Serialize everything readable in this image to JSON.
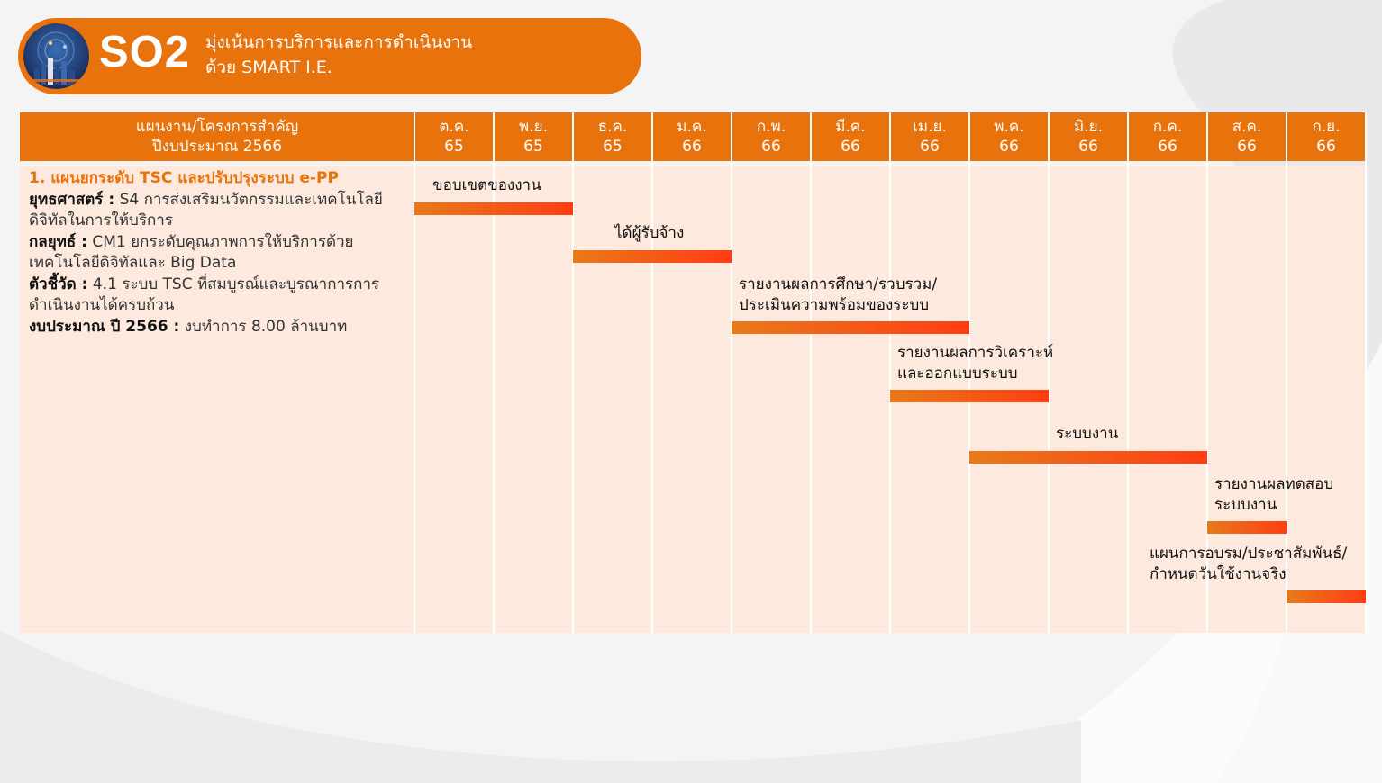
{
  "header": {
    "code": "SO2",
    "title_line1": "มุ่งเน้นการบริการและการดำเนินงาน",
    "title_line2": "ด้วย SMART I.E."
  },
  "table": {
    "plan_header_line1": "แผนงาน/โครงการสำคัญ",
    "plan_header_line2": "ปีงบประมาณ 2566",
    "months": [
      {
        "m": "ต.ค.",
        "y": "65"
      },
      {
        "m": "พ.ย.",
        "y": "65"
      },
      {
        "m": "ธ.ค.",
        "y": "65"
      },
      {
        "m": "ม.ค.",
        "y": "66"
      },
      {
        "m": "ก.พ.",
        "y": "66"
      },
      {
        "m": "มี.ค.",
        "y": "66"
      },
      {
        "m": "เม.ย.",
        "y": "66"
      },
      {
        "m": "พ.ค.",
        "y": "66"
      },
      {
        "m": "มิ.ย.",
        "y": "66"
      },
      {
        "m": "ก.ค.",
        "y": "66"
      },
      {
        "m": "ส.ค.",
        "y": "66"
      },
      {
        "m": "ก.ย.",
        "y": "66"
      }
    ]
  },
  "plan": {
    "title": "1. แผนยกระดับ TSC และปรับปรุงระบบ e-PP",
    "strategy_label": "ยุทธศาสตร์ :",
    "strategy_value": "S4 การส่งเสริมนวัตกรรมและเทคโนโลยีดิจิทัลในการให้บริการ",
    "tactic_label": "กลยุทธ์ :",
    "tactic_value": "CM1 ยกระดับคุณภาพการให้บริการด้วยเทคโนโลยีดิจิทัลและ Big Data",
    "kpi_label": "ตัวชี้วัด :",
    "kpi_value": "4.1 ระบบ TSC ที่สมบูรณ์และบูรณาการการดำเนินงานได้ครบถ้วน",
    "budget_label": "งบประมาณ ปี 2566 :",
    "budget_value": "งบทำการ 8.00 ล้านบาท"
  },
  "tasks": [
    {
      "label_line1": "ขอบเขตของงาน",
      "label_line2": "",
      "start": 0,
      "span": 2
    },
    {
      "label_line1": "ได้ผู้รับจ้าง",
      "label_line2": "",
      "start": 2,
      "span": 2
    },
    {
      "label_line1": "รายงานผลการศึกษา/รวบรวม/",
      "label_line2": "ประเมินความพร้อมของระบบ",
      "start": 4,
      "span": 3
    },
    {
      "label_line1": "รายงานผลการวิเคราะห์",
      "label_line2": "และออกแบบระบบ",
      "start": 6,
      "span": 2
    },
    {
      "label_line1": "ระบบงาน",
      "label_line2": "",
      "start": 7,
      "span": 3
    },
    {
      "label_line1": "รายงานผลทดสอบ",
      "label_line2": "ระบบงาน",
      "start": 10,
      "span": 1
    },
    {
      "label_line1": "แผนการอบรม/ประชาสัมพันธ์/",
      "label_line2": "กำหนดวันใช้งานจริง",
      "start": 11,
      "span": 1
    }
  ]
}
